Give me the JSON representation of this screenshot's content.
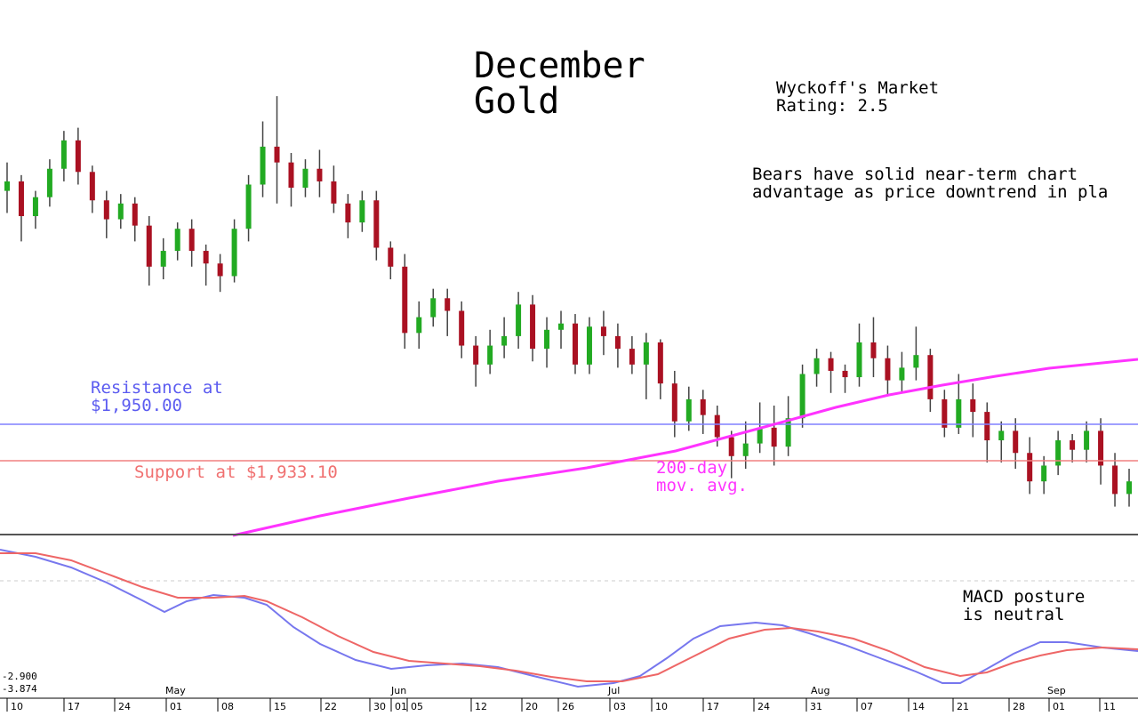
{
  "chart_data": {
    "type": "candlestick",
    "title_line1": "December",
    "title_line2": "Gold",
    "rating_line1": "Wyckoff's Market",
    "rating_line2": "Rating: 2.5",
    "note_line1": "Bears have solid near-term chart",
    "note_line2": "advantage as price downtrend in pla",
    "resistance": {
      "value": 1950.0,
      "label_line1": "Resistance at",
      "label_line2": "$1,950.00",
      "color": "#8080ff"
    },
    "support": {
      "value": 1933.1,
      "label": "Support at $1,933.10",
      "color": "#f08080"
    },
    "moving_average": {
      "label_line1": "200-day",
      "label_line2": "mov. avg.",
      "color": "#ff33ff"
    },
    "macd_note_line1": "MACD posture",
    "macd_note_line2": "is neutral",
    "macd_readout_1": "-2.900",
    "macd_readout_2": "-3.874",
    "x_tick_labels": [
      "10",
      "17",
      "24",
      "01",
      "08",
      "15",
      "22",
      "30",
      "01",
      "05",
      "12",
      "20",
      "26",
      "03",
      "10",
      "17",
      "24",
      "31",
      "07",
      "14",
      "21",
      "28",
      "01",
      "11"
    ],
    "month_labels": [
      "May",
      "Jun",
      "Jul",
      "Aug",
      "Sep"
    ],
    "ylim": [
      1900,
      2060
    ],
    "grid": false,
    "candles": [
      [
        2008,
        2011,
        2001,
        2017
      ],
      [
        2011,
        2000,
        1992,
        2013
      ],
      [
        2000,
        2006,
        1996,
        2008
      ],
      [
        2006,
        2015,
        2003,
        2018
      ],
      [
        2015,
        2024,
        2011,
        2027
      ],
      [
        2024,
        2014,
        2010,
        2028
      ],
      [
        2014,
        2005,
        2001,
        2016
      ],
      [
        2005,
        1999,
        1993,
        2008
      ],
      [
        1999,
        2004,
        1996,
        2007
      ],
      [
        2004,
        1997,
        1992,
        2006
      ],
      [
        1997,
        1984,
        1978,
        2000
      ],
      [
        1984,
        1989,
        1980,
        1993
      ],
      [
        1989,
        1996,
        1986,
        1998
      ],
      [
        1996,
        1989,
        1984,
        1999
      ],
      [
        1989,
        1985,
        1978,
        1991
      ],
      [
        1985,
        1981,
        1976,
        1988
      ],
      [
        1981,
        1996,
        1979,
        1999
      ],
      [
        1996,
        2010,
        1992,
        2013
      ],
      [
        2010,
        2022,
        2006,
        2030
      ],
      [
        2022,
        2017,
        2004,
        2038
      ],
      [
        2017,
        2009,
        2003,
        2020
      ],
      [
        2009,
        2015,
        2006,
        2018
      ],
      [
        2015,
        2011,
        2006,
        2021
      ],
      [
        2011,
        2004,
        2001,
        2016
      ],
      [
        2004,
        1998,
        1993,
        2007
      ],
      [
        1998,
        2005,
        1995,
        2008
      ],
      [
        2005,
        1990,
        1986,
        2008
      ],
      [
        1990,
        1984,
        1980,
        1992
      ],
      [
        1984,
        1963,
        1958,
        1988
      ],
      [
        1963,
        1968,
        1958,
        1973
      ],
      [
        1968,
        1974,
        1965,
        1977
      ],
      [
        1974,
        1970,
        1962,
        1977
      ],
      [
        1970,
        1959,
        1955,
        1973
      ],
      [
        1959,
        1953,
        1946,
        1962
      ],
      [
        1953,
        1959,
        1950,
        1964
      ],
      [
        1959,
        1962,
        1955,
        1968
      ],
      [
        1962,
        1972,
        1958,
        1976
      ],
      [
        1972,
        1958,
        1954,
        1975
      ],
      [
        1958,
        1964,
        1952,
        1968
      ],
      [
        1964,
        1966,
        1958,
        1970
      ],
      [
        1966,
        1953,
        1950,
        1969
      ],
      [
        1953,
        1965,
        1950,
        1968
      ],
      [
        1965,
        1962,
        1956,
        1970
      ],
      [
        1962,
        1958,
        1952,
        1966
      ],
      [
        1958,
        1953,
        1950,
        1962
      ],
      [
        1953,
        1960,
        1942,
        1963
      ],
      [
        1960,
        1947,
        1942,
        1961
      ],
      [
        1947,
        1935,
        1930,
        1951
      ],
      [
        1935,
        1942,
        1932,
        1946
      ],
      [
        1942,
        1937,
        1931,
        1945
      ],
      [
        1937,
        1930,
        1927,
        1940
      ],
      [
        1930,
        1924,
        1917,
        1932
      ],
      [
        1924,
        1928,
        1920,
        1935
      ],
      [
        1928,
        1933,
        1925,
        1941
      ],
      [
        1933,
        1927,
        1921,
        1940
      ],
      [
        1927,
        1936,
        1924,
        1943
      ],
      [
        1936,
        1950,
        1933,
        1953
      ],
      [
        1950,
        1955,
        1946,
        1958
      ],
      [
        1955,
        1951,
        1944,
        1957
      ],
      [
        1951,
        1949,
        1944,
        1953
      ],
      [
        1949,
        1960,
        1946,
        1966
      ],
      [
        1960,
        1955,
        1949,
        1968
      ],
      [
        1955,
        1948,
        1943,
        1959
      ],
      [
        1948,
        1952,
        1944,
        1957
      ],
      [
        1952,
        1956,
        1948,
        1965
      ],
      [
        1956,
        1942,
        1938,
        1958
      ],
      [
        1942,
        1933,
        1930,
        1945
      ],
      [
        1933,
        1942,
        1931,
        1950
      ],
      [
        1942,
        1938,
        1930,
        1947
      ],
      [
        1938,
        1929,
        1922,
        1941
      ],
      [
        1929,
        1932,
        1922,
        1935
      ],
      [
        1932,
        1925,
        1920,
        1936
      ],
      [
        1925,
        1916,
        1912,
        1930
      ],
      [
        1916,
        1921,
        1912,
        1924
      ],
      [
        1921,
        1929,
        1918,
        1932
      ],
      [
        1929,
        1926,
        1922,
        1931
      ],
      [
        1926,
        1932,
        1922,
        1935
      ],
      [
        1932,
        1921,
        1915,
        1936
      ],
      [
        1921,
        1912,
        1908,
        1925
      ],
      [
        1912,
        1916,
        1908,
        1920
      ]
    ]
  }
}
